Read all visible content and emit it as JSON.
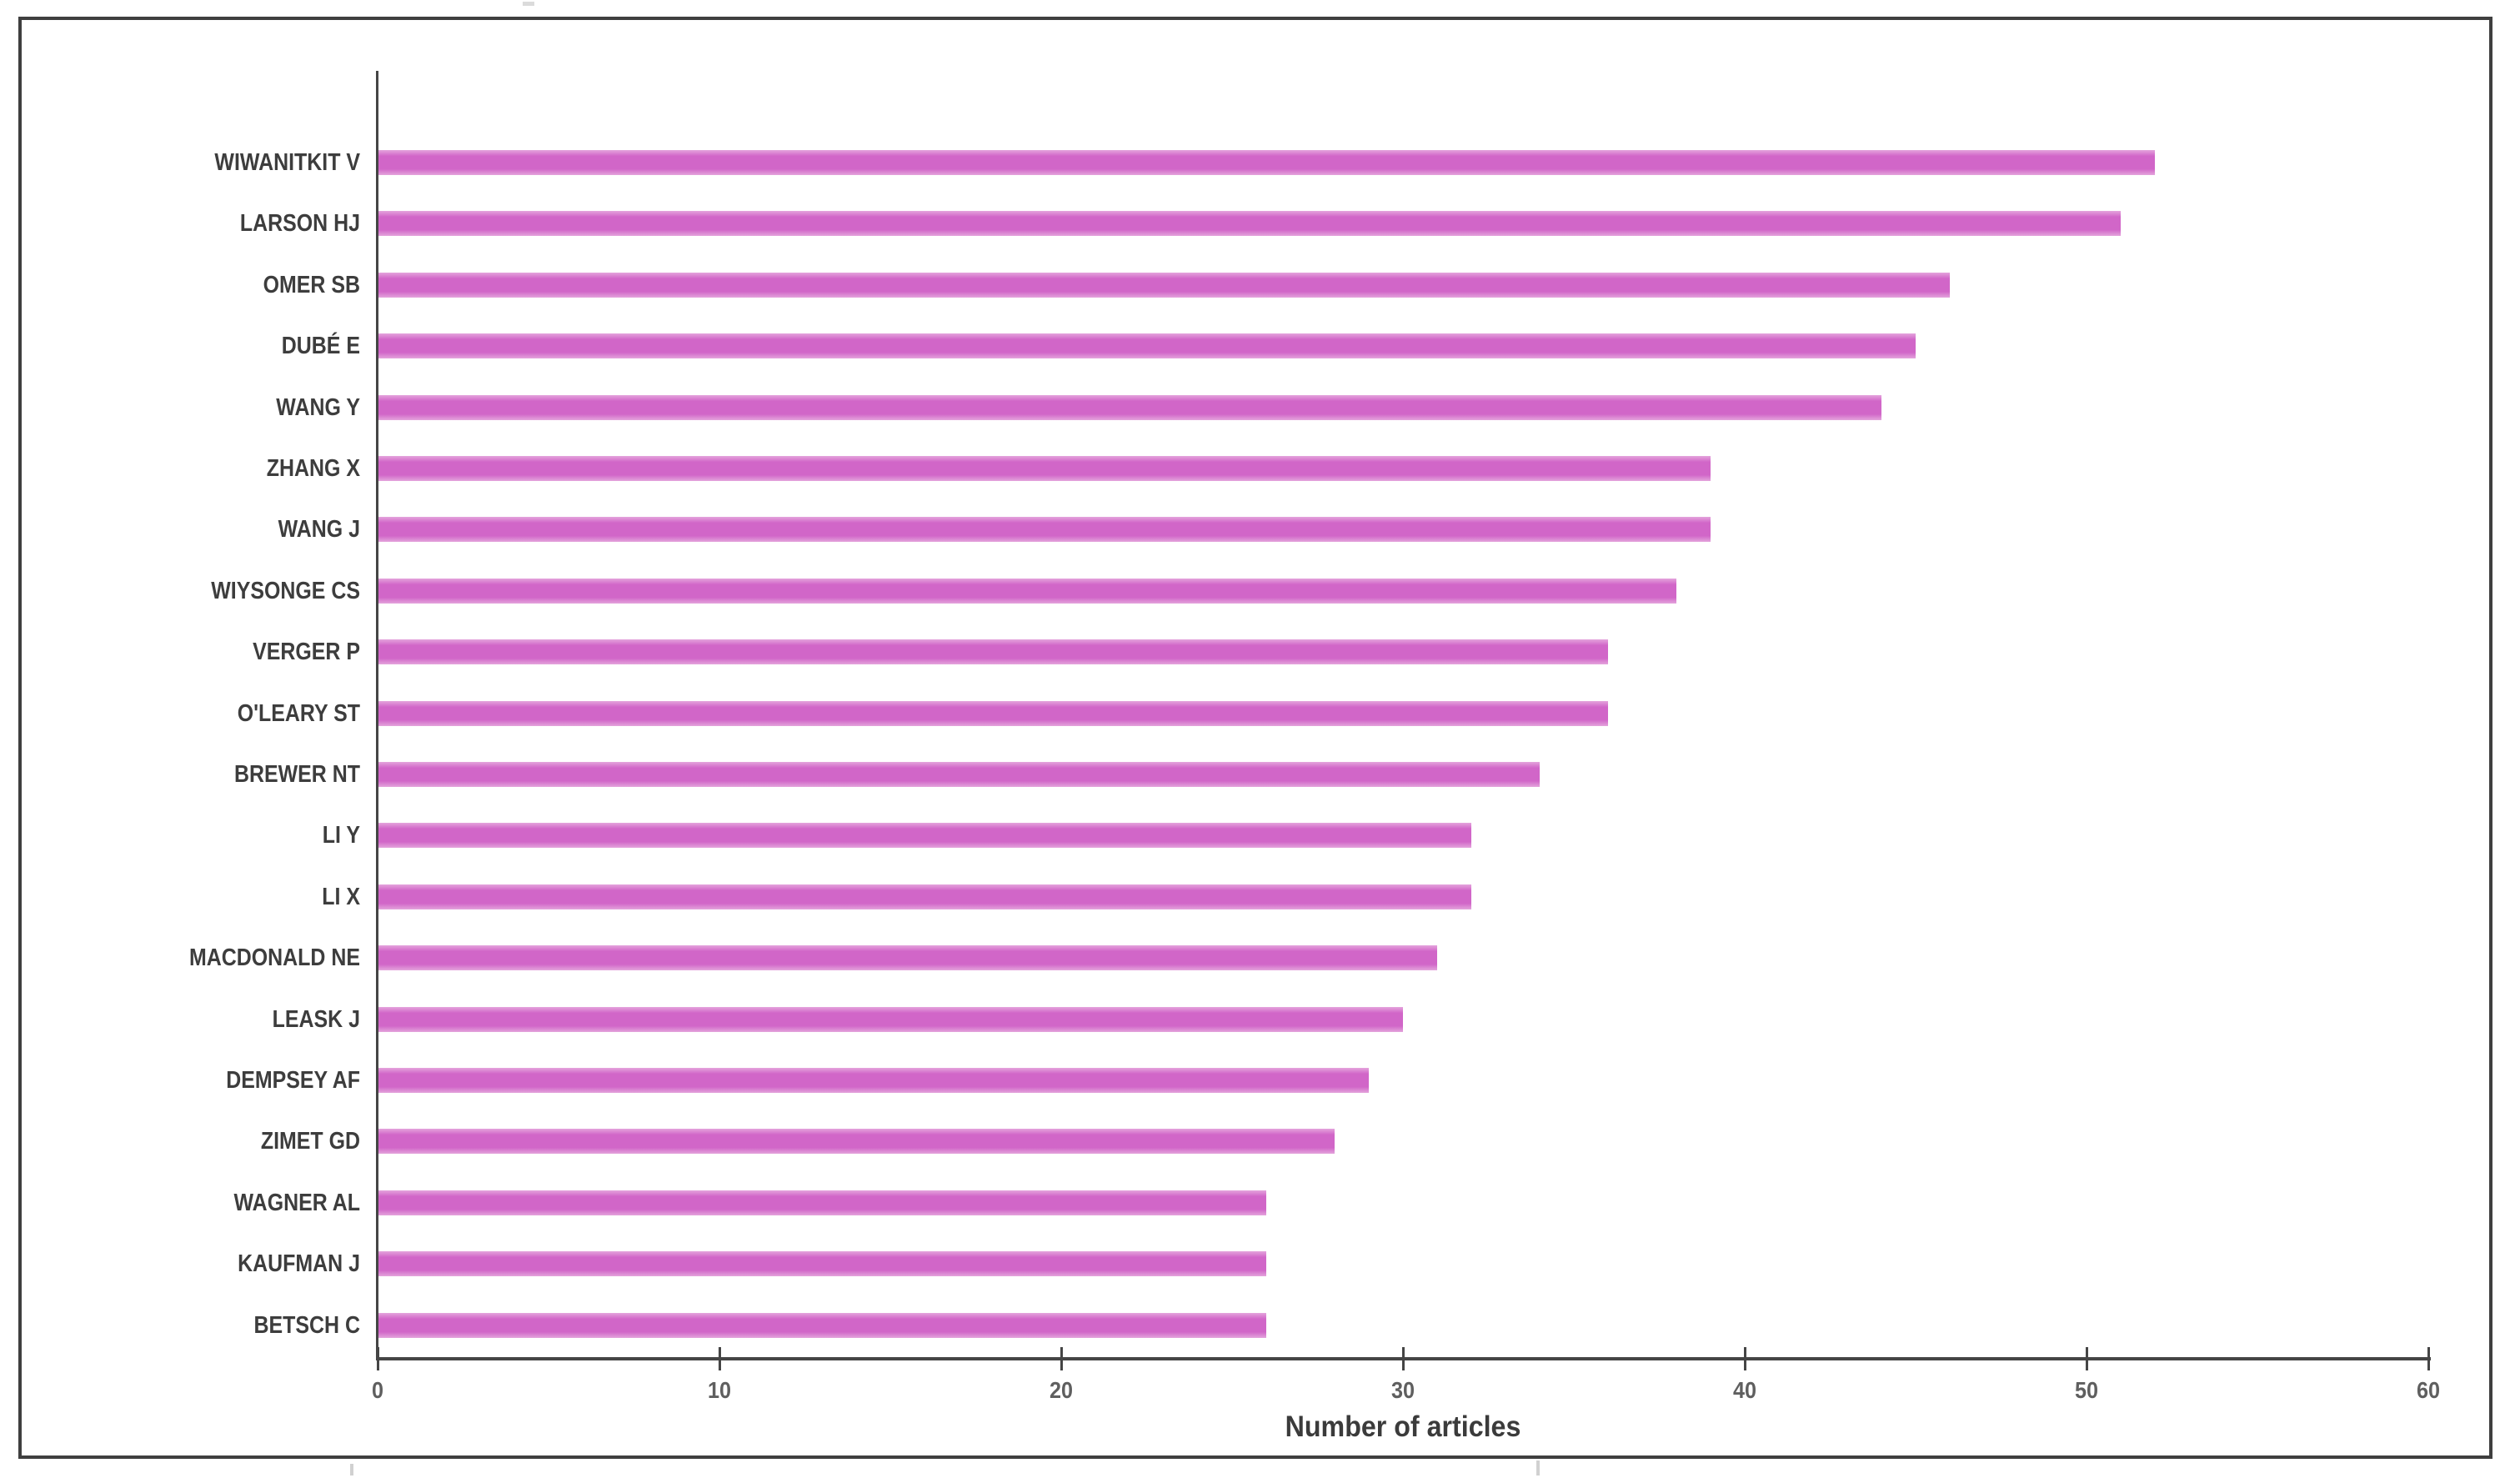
{
  "chart_data": {
    "type": "bar",
    "orientation": "horizontal",
    "title": "",
    "xlabel": "Number of articles",
    "ylabel": "",
    "xlim": [
      0,
      60
    ],
    "x_ticks": [
      0,
      10,
      20,
      30,
      40,
      50,
      60
    ],
    "grid": false,
    "legend": "none",
    "bar_color": "#d166c8",
    "categories": [
      "WIWANITKIT V",
      "LARSON HJ",
      "OMER SB",
      "DUBÉ E",
      "WANG Y",
      "ZHANG X",
      "WANG J",
      "WIYSONGE CS",
      "VERGER P",
      "O'LEARY ST",
      "BREWER NT",
      "LI Y",
      "LI X",
      "MACDONALD NE",
      "LEASK J",
      "DEMPSEY AF",
      "ZIMET GD",
      "WAGNER AL",
      "KAUFMAN J",
      "BETSCH C"
    ],
    "values": [
      52,
      51,
      46,
      45,
      44,
      39,
      39,
      38,
      36,
      36,
      34,
      32,
      32,
      31,
      30,
      29,
      28,
      26,
      26,
      26
    ]
  },
  "colors": {
    "bar": "#d166c8",
    "axis": "#454545",
    "frame": "#3f3f3f",
    "category_label": "#3d3d3d",
    "tick_label": "#5f5f5f",
    "axis_title": "#3b3b3b",
    "background": "#ffffff"
  }
}
